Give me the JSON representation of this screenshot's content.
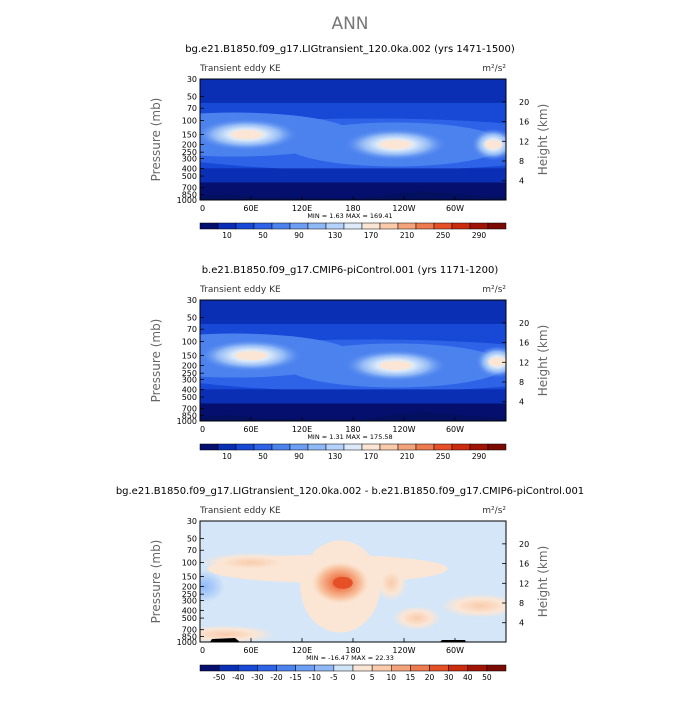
{
  "page_title": "ANN",
  "chart_data": [
    {
      "type": "heatmap",
      "title": "bg.e21.B1850.f09_g17.LIGtransient_120.0ka.002 (yrs 1471-1500)",
      "subtitle": "Transient eddy KE",
      "units": "m²/s²",
      "ylabel": "Pressure (mb)",
      "ylabel_right": "Height (km)",
      "pressure_ticks": [
        "30",
        "50",
        "70",
        "100",
        "150",
        "200",
        "250",
        "300",
        "400",
        "500",
        "700",
        "850",
        "1000"
      ],
      "height_ticks": [
        "20",
        "16",
        "12",
        "8",
        "4"
      ],
      "lon_ticks": [
        "0",
        "60E",
        "120E",
        "180",
        "120W",
        "60W"
      ],
      "stats": "MIN =    1.63   MAX = 169.41",
      "colorbar_labels": [
        "10",
        "50",
        "90",
        "130",
        "170",
        "210",
        "250",
        "290"
      ],
      "colorbar_colors": [
        "#050f6e",
        "#0a2fb4",
        "#1849d6",
        "#2e63e8",
        "#4c82ee",
        "#6c9ef3",
        "#8fb8f6",
        "#b5d2fa",
        "#dceaf9",
        "#fbe6d5",
        "#f9cbab",
        "#f4a27a",
        "#ee7a4f",
        "#e65027",
        "#cc2c0e",
        "#a01405",
        "#7a0a02"
      ],
      "features": [
        {
          "lon": 55,
          "p": 150,
          "level": 8
        },
        {
          "lon": 230,
          "p": 200,
          "level": 8
        },
        {
          "lon": 345,
          "p": 200,
          "level": 7
        }
      ]
    },
    {
      "type": "heatmap",
      "title": "b.e21.B1850.f09_g17.CMIP6-piControl.001 (yrs 1171-1200)",
      "subtitle": "Transient eddy KE",
      "units": "m²/s²",
      "ylabel": "Pressure (mb)",
      "ylabel_right": "Height (km)",
      "pressure_ticks": [
        "30",
        "50",
        "70",
        "100",
        "150",
        "200",
        "250",
        "300",
        "400",
        "500",
        "700",
        "850",
        "1000"
      ],
      "height_ticks": [
        "20",
        "16",
        "12",
        "8",
        "4"
      ],
      "lon_ticks": [
        "0",
        "60E",
        "120E",
        "180",
        "120W",
        "60W"
      ],
      "stats": "MIN =    1.31   MAX = 175.58",
      "colorbar_labels": [
        "10",
        "50",
        "90",
        "130",
        "170",
        "210",
        "250",
        "290"
      ],
      "colorbar_colors": [
        "#050f6e",
        "#0a2fb4",
        "#1849d6",
        "#2e63e8",
        "#4c82ee",
        "#6c9ef3",
        "#8fb8f6",
        "#b5d2fa",
        "#dceaf9",
        "#fbe6d5",
        "#f9cbab",
        "#f4a27a",
        "#ee7a4f",
        "#e65027",
        "#cc2c0e",
        "#a01405",
        "#7a0a02"
      ],
      "features": [
        {
          "lon": 60,
          "p": 150,
          "level": 8
        },
        {
          "lon": 230,
          "p": 200,
          "level": 8
        },
        {
          "lon": 350,
          "p": 180,
          "level": 7
        }
      ]
    },
    {
      "type": "heatmap",
      "title": "bg.e21.B1850.f09_g17.LIGtransient_120.0ka.002 - b.e21.B1850.f09_g17.CMIP6-piControl.001",
      "subtitle": "Transient eddy KE",
      "units": "m²/s²",
      "ylabel": "Pressure (mb)",
      "ylabel_right": "Height (km)",
      "pressure_ticks": [
        "30",
        "50",
        "70",
        "100",
        "150",
        "200",
        "250",
        "300",
        "400",
        "500",
        "700",
        "850",
        "1000"
      ],
      "height_ticks": [
        "20",
        "16",
        "12",
        "8",
        "4"
      ],
      "lon_ticks": [
        "0",
        "60E",
        "120E",
        "180",
        "120W",
        "60W"
      ],
      "stats": "MIN =  -16.47   MAX =  22.33",
      "colorbar_labels": [
        "-50",
        "-40",
        "-30",
        "-20",
        "-15",
        "-10",
        "-5",
        "0",
        "5",
        "10",
        "15",
        "20",
        "30",
        "40",
        "50"
      ],
      "colorbar_colors": [
        "#050f6e",
        "#0a2fb4",
        "#1849d6",
        "#2e63e8",
        "#4c82ee",
        "#6c9ef3",
        "#8fb8f6",
        "#cfe3f7",
        "#fbe6d5",
        "#f9cbab",
        "#f4a27a",
        "#ee7a4f",
        "#e65027",
        "#cc2c0e",
        "#a01405",
        "#7a0a02"
      ],
      "features": [
        {
          "lon": 165,
          "p": 180,
          "value": 20
        },
        {
          "lon": 45,
          "p": 100,
          "value": 5
        },
        {
          "lon": 225,
          "p": 170,
          "value": 5
        },
        {
          "lon": 190,
          "p": 300,
          "value": 5
        },
        {
          "lon": 5,
          "p": 180,
          "value": -5
        }
      ]
    }
  ]
}
